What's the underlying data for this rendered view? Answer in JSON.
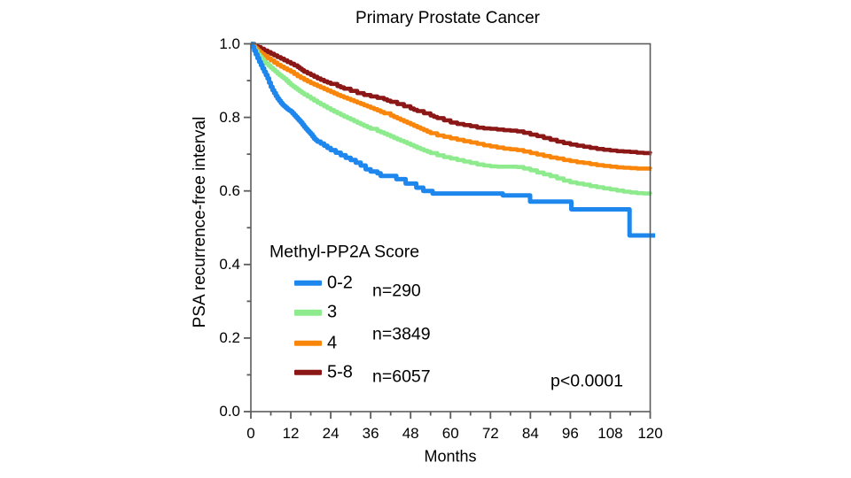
{
  "title": "Primary Prostate Cancer",
  "x_axis": {
    "label": "Months"
  },
  "y_axis": {
    "label": "PSA recurrence-free interval"
  },
  "legend": {
    "title": "Methyl-PP2A Score",
    "entries": [
      {
        "label": "0-2",
        "color": "#1E87EE"
      },
      {
        "label": "3",
        "color": "#8DEB8D"
      },
      {
        "label": "4",
        "color": "#F9860B"
      },
      {
        "label": "5-8",
        "color": "#8B1717"
      }
    ],
    "n_labels": [
      "n=290",
      "n=3849",
      "n=6057"
    ]
  },
  "annotation": {
    "p_value": "p<0.0001"
  },
  "chart_data": {
    "type": "line",
    "subtype": "kaplan-meier-step",
    "title": "Primary Prostate Cancer",
    "xlabel": "Months",
    "ylabel": "PSA recurrence-free interval",
    "xlim": [
      0,
      120
    ],
    "ylim": [
      0.0,
      1.0
    ],
    "x_major_ticks": [
      0,
      12,
      24,
      36,
      48,
      60,
      72,
      84,
      96,
      108,
      120
    ],
    "x_minor_ticks": [
      6,
      18,
      30,
      42,
      54,
      66,
      78,
      90,
      102,
      114
    ],
    "y_major_ticks": [
      0.0,
      0.2,
      0.4,
      0.6,
      0.8,
      1.0
    ],
    "y_minor_ticks": [
      0.1,
      0.3,
      0.5,
      0.7,
      0.9
    ],
    "grid": false,
    "legend_position": "lower-left-inside",
    "p_value": "p<0.0001",
    "series": [
      {
        "name": "5-8",
        "n": 6057,
        "color": "#8B1717",
        "points": [
          [
            0,
            1.0
          ],
          [
            2,
            0.991
          ],
          [
            4,
            0.982
          ],
          [
            6,
            0.973
          ],
          [
            8,
            0.964
          ],
          [
            10,
            0.955
          ],
          [
            12,
            0.946
          ],
          [
            14,
            0.937
          ],
          [
            16,
            0.924
          ],
          [
            18,
            0.915
          ],
          [
            20,
            0.906
          ],
          [
            22,
            0.898
          ],
          [
            24,
            0.891
          ],
          [
            26,
            0.885
          ],
          [
            28,
            0.878
          ],
          [
            30,
            0.872
          ],
          [
            32,
            0.866
          ],
          [
            34,
            0.861
          ],
          [
            36,
            0.857
          ],
          [
            38,
            0.853
          ],
          [
            40,
            0.849
          ],
          [
            42,
            0.842
          ],
          [
            44,
            0.836
          ],
          [
            46,
            0.83
          ],
          [
            48,
            0.824
          ],
          [
            50,
            0.817
          ],
          [
            52,
            0.811
          ],
          [
            54,
            0.805
          ],
          [
            56,
            0.798
          ],
          [
            58,
            0.792
          ],
          [
            60,
            0.786
          ],
          [
            62,
            0.782
          ],
          [
            64,
            0.779
          ],
          [
            66,
            0.776
          ],
          [
            68,
            0.772
          ],
          [
            70,
            0.77
          ],
          [
            72,
            0.769
          ],
          [
            74,
            0.767
          ],
          [
            76,
            0.765
          ],
          [
            78,
            0.764
          ],
          [
            80,
            0.762
          ],
          [
            82,
            0.758
          ],
          [
            84,
            0.753
          ],
          [
            86,
            0.749
          ],
          [
            88,
            0.744
          ],
          [
            90,
            0.739
          ],
          [
            92,
            0.734
          ],
          [
            94,
            0.73
          ],
          [
            96,
            0.726
          ],
          [
            98,
            0.723
          ],
          [
            100,
            0.72
          ],
          [
            102,
            0.717
          ],
          [
            104,
            0.714
          ],
          [
            106,
            0.712
          ],
          [
            108,
            0.71
          ],
          [
            110,
            0.708
          ],
          [
            112,
            0.707
          ],
          [
            114,
            0.706
          ],
          [
            116,
            0.704
          ],
          [
            118,
            0.703
          ],
          [
            120,
            0.702
          ]
        ]
      },
      {
        "name": "4",
        "n": 3849,
        "color": "#F9860B",
        "points": [
          [
            0,
            1.0
          ],
          [
            2,
            0.982
          ],
          [
            4,
            0.967
          ],
          [
            6,
            0.955
          ],
          [
            8,
            0.943
          ],
          [
            10,
            0.933
          ],
          [
            12,
            0.924
          ],
          [
            14,
            0.912
          ],
          [
            16,
            0.902
          ],
          [
            18,
            0.893
          ],
          [
            20,
            0.885
          ],
          [
            22,
            0.877
          ],
          [
            24,
            0.869
          ],
          [
            26,
            0.861
          ],
          [
            28,
            0.854
          ],
          [
            30,
            0.847
          ],
          [
            32,
            0.84
          ],
          [
            34,
            0.833
          ],
          [
            36,
            0.826
          ],
          [
            38,
            0.819
          ],
          [
            40,
            0.811
          ],
          [
            42,
            0.805
          ],
          [
            44,
            0.797
          ],
          [
            46,
            0.789
          ],
          [
            48,
            0.781
          ],
          [
            50,
            0.773
          ],
          [
            52,
            0.765
          ],
          [
            54,
            0.757
          ],
          [
            56,
            0.751
          ],
          [
            58,
            0.747
          ],
          [
            60,
            0.743
          ],
          [
            62,
            0.739
          ],
          [
            64,
            0.735
          ],
          [
            66,
            0.732
          ],
          [
            68,
            0.728
          ],
          [
            70,
            0.724
          ],
          [
            72,
            0.721
          ],
          [
            74,
            0.718
          ],
          [
            76,
            0.715
          ],
          [
            78,
            0.713
          ],
          [
            80,
            0.711
          ],
          [
            82,
            0.707
          ],
          [
            84,
            0.703
          ],
          [
            86,
            0.699
          ],
          [
            88,
            0.695
          ],
          [
            90,
            0.691
          ],
          [
            92,
            0.688
          ],
          [
            94,
            0.684
          ],
          [
            96,
            0.681
          ],
          [
            98,
            0.678
          ],
          [
            100,
            0.676
          ],
          [
            102,
            0.673
          ],
          [
            104,
            0.67
          ],
          [
            106,
            0.668
          ],
          [
            108,
            0.666
          ],
          [
            110,
            0.664
          ],
          [
            112,
            0.663
          ],
          [
            114,
            0.662
          ],
          [
            116,
            0.661
          ],
          [
            118,
            0.661
          ],
          [
            120,
            0.66
          ]
        ]
      },
      {
        "name": "3",
        "n": null,
        "color": "#8DEB8D",
        "points": [
          [
            0,
            1.0
          ],
          [
            2,
            0.971
          ],
          [
            4,
            0.951
          ],
          [
            6,
            0.935
          ],
          [
            8,
            0.919
          ],
          [
            10,
            0.905
          ],
          [
            12,
            0.888
          ],
          [
            14,
            0.875
          ],
          [
            16,
            0.862
          ],
          [
            18,
            0.851
          ],
          [
            20,
            0.84
          ],
          [
            22,
            0.83
          ],
          [
            24,
            0.82
          ],
          [
            26,
            0.811
          ],
          [
            28,
            0.802
          ],
          [
            30,
            0.794
          ],
          [
            32,
            0.785
          ],
          [
            34,
            0.777
          ],
          [
            36,
            0.769
          ],
          [
            38,
            0.763
          ],
          [
            40,
            0.756
          ],
          [
            42,
            0.748
          ],
          [
            44,
            0.74
          ],
          [
            46,
            0.733
          ],
          [
            48,
            0.725
          ],
          [
            50,
            0.717
          ],
          [
            52,
            0.71
          ],
          [
            54,
            0.703
          ],
          [
            56,
            0.697
          ],
          [
            58,
            0.692
          ],
          [
            60,
            0.688
          ],
          [
            62,
            0.684
          ],
          [
            64,
            0.68
          ],
          [
            66,
            0.676
          ],
          [
            68,
            0.672
          ],
          [
            70,
            0.669
          ],
          [
            72,
            0.667
          ],
          [
            74,
            0.666
          ],
          [
            76,
            0.666
          ],
          [
            78,
            0.666
          ],
          [
            80,
            0.665
          ],
          [
            82,
            0.661
          ],
          [
            84,
            0.656
          ],
          [
            86,
            0.65
          ],
          [
            88,
            0.645
          ],
          [
            90,
            0.64
          ],
          [
            92,
            0.634
          ],
          [
            94,
            0.628
          ],
          [
            96,
            0.623
          ],
          [
            98,
            0.62
          ],
          [
            100,
            0.617
          ],
          [
            102,
            0.613
          ],
          [
            104,
            0.61
          ],
          [
            106,
            0.607
          ],
          [
            108,
            0.604
          ],
          [
            110,
            0.601
          ],
          [
            112,
            0.598
          ],
          [
            114,
            0.596
          ],
          [
            116,
            0.594
          ],
          [
            118,
            0.593
          ],
          [
            120,
            0.592
          ]
        ]
      },
      {
        "name": "0-2",
        "n": 290,
        "color": "#1E87EE",
        "step_resolution": "exact",
        "points": [
          [
            0,
            1.0
          ],
          [
            0.5,
            0.991
          ],
          [
            1,
            0.981
          ],
          [
            1.5,
            0.971
          ],
          [
            2,
            0.961
          ],
          [
            2.5,
            0.951
          ],
          [
            3,
            0.942
          ],
          [
            3.5,
            0.933
          ],
          [
            4,
            0.924
          ],
          [
            4.5,
            0.915
          ],
          [
            5,
            0.906
          ],
          [
            5.5,
            0.894
          ],
          [
            6,
            0.883
          ],
          [
            6.5,
            0.874
          ],
          [
            7,
            0.866
          ],
          [
            7.5,
            0.858
          ],
          [
            8,
            0.851
          ],
          [
            8.5,
            0.845
          ],
          [
            9,
            0.839
          ],
          [
            9.5,
            0.834
          ],
          [
            10,
            0.83
          ],
          [
            10.5,
            0.826
          ],
          [
            11,
            0.822
          ],
          [
            11.5,
            0.819
          ],
          [
            12,
            0.816
          ],
          [
            12.5,
            0.811
          ],
          [
            13,
            0.806
          ],
          [
            13.5,
            0.801
          ],
          [
            14,
            0.796
          ],
          [
            14.5,
            0.791
          ],
          [
            15,
            0.786
          ],
          [
            15.5,
            0.78
          ],
          [
            16,
            0.774
          ],
          [
            16.5,
            0.769
          ],
          [
            17,
            0.764
          ],
          [
            17.5,
            0.759
          ],
          [
            18,
            0.754
          ],
          [
            18.5,
            0.748
          ],
          [
            19,
            0.742
          ],
          [
            19.5,
            0.738
          ],
          [
            20,
            0.734
          ],
          [
            21,
            0.729
          ],
          [
            22,
            0.723
          ],
          [
            23,
            0.717
          ],
          [
            24,
            0.711
          ],
          [
            25.5,
            0.704
          ],
          [
            27,
            0.697
          ],
          [
            28.5,
            0.69
          ],
          [
            30,
            0.684
          ],
          [
            31.5,
            0.677
          ],
          [
            33,
            0.669
          ],
          [
            34.5,
            0.659
          ],
          [
            36,
            0.653
          ],
          [
            38,
            0.648
          ],
          [
            39,
            0.641
          ],
          [
            43.7,
            0.632
          ],
          [
            46.5,
            0.62
          ],
          [
            49.7,
            0.609
          ],
          [
            51.8,
            0.6
          ],
          [
            54.6,
            0.593
          ],
          [
            75.7,
            0.588
          ],
          [
            83.9,
            0.571
          ],
          [
            96.3,
            0.55
          ],
          [
            113.8,
            0.479
          ],
          [
            121.5,
            0.479
          ]
        ]
      }
    ]
  }
}
